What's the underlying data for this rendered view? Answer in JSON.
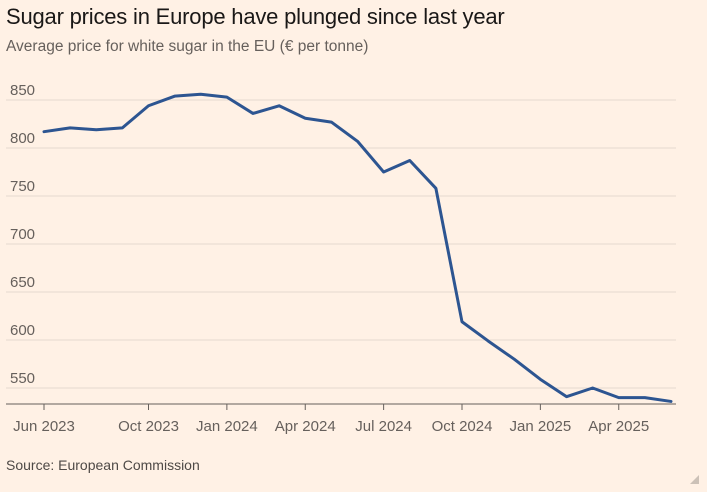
{
  "chart_data": {
    "type": "line",
    "title": "Sugar prices in Europe have plunged since last year",
    "subtitle": "Average price for white sugar in the EU (€ per tonne)",
    "source": "Source: European Commission",
    "xlabel": "",
    "ylabel": "",
    "ylim": [
      530,
      870
    ],
    "yticks": [
      550,
      600,
      650,
      700,
      750,
      800,
      850
    ],
    "xticks": [
      {
        "label": "Jun 2023",
        "index": 0
      },
      {
        "label": "Oct 2023",
        "index": 4
      },
      {
        "label": "Jan 2024",
        "index": 7
      },
      {
        "label": "Apr 2024",
        "index": 10
      },
      {
        "label": "Jul 2024",
        "index": 13
      },
      {
        "label": "Oct 2024",
        "index": 16
      },
      {
        "label": "Jan 2025",
        "index": 19
      },
      {
        "label": "Apr 2025",
        "index": 22
      }
    ],
    "series": [
      {
        "name": "Average price for white sugar",
        "color": "#2D5591",
        "x": [
          "Jun 2023",
          "Jul 2023",
          "Aug 2023",
          "Sep 2023",
          "Oct 2023",
          "Nov 2023",
          "Dec 2023",
          "Jan 2024",
          "Feb 2024",
          "Mar 2024",
          "Apr 2024",
          "May 2024",
          "Jun 2024",
          "Jul 2024",
          "Aug 2024",
          "Sep 2024",
          "Oct 2024",
          "Nov 2024",
          "Dec 2024",
          "Jan 2025",
          "Feb 2025",
          "Mar 2025",
          "Apr 2025",
          "May 2025",
          "Jun 2025"
        ],
        "values": [
          817,
          821,
          819,
          821,
          844,
          854,
          856,
          853,
          836,
          844,
          831,
          827,
          807,
          775,
          787,
          758,
          619,
          599,
          580,
          559,
          541,
          550,
          540,
          540,
          536
        ]
      }
    ],
    "grid": true,
    "legend": "none"
  }
}
